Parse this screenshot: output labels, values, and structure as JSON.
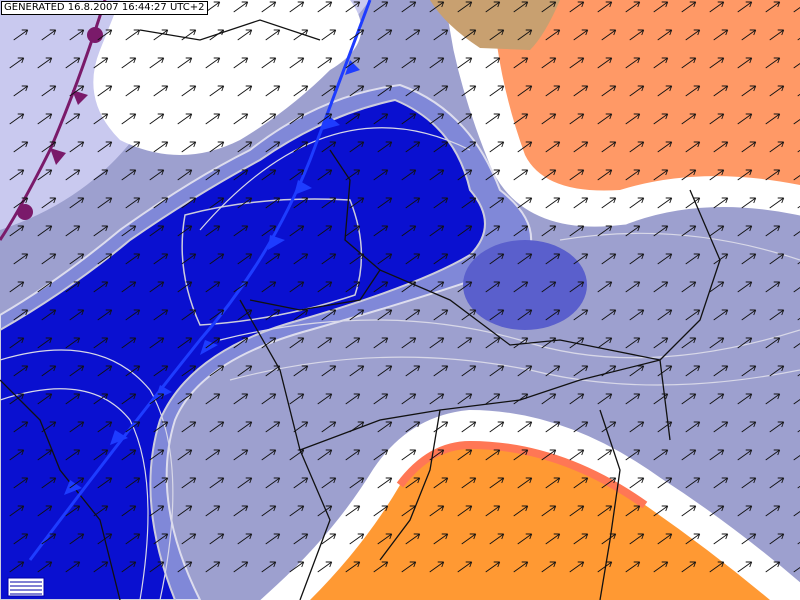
{
  "header": {
    "generated": "GENERATED 16.8.2007 16:44:27 UTC+2"
  }
}
